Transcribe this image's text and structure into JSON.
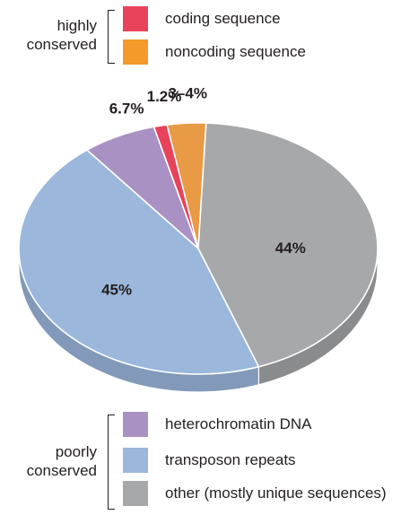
{
  "legend_groups": [
    {
      "label_lines": [
        "highly",
        "conserved"
      ],
      "items": [
        {
          "label": "coding sequence",
          "color": "#e8435a"
        },
        {
          "label": "noncoding sequence",
          "color": "#f39a2b"
        }
      ]
    },
    {
      "label_lines": [
        "poorly",
        "conserved"
      ],
      "items": [
        {
          "label": "heterochromatin DNA",
          "color": "#a991c3"
        },
        {
          "label": "transposon repeats",
          "color": "#9bb7dc"
        },
        {
          "label": "other (mostly unique sequences)",
          "color": "#a7a8aa"
        }
      ]
    }
  ],
  "chart_data": {
    "type": "pie",
    "style": "3d",
    "slices": [
      {
        "category": "heterochromatin DNA",
        "label": "6.7%",
        "value": 6.7,
        "color": "#a991c3",
        "side_color": "#8f7aa8"
      },
      {
        "category": "coding sequence",
        "label": "1.2%",
        "value": 1.2,
        "color": "#e8435a",
        "side_color": "#c23448"
      },
      {
        "category": "noncoding sequence",
        "label": "3–4%",
        "value": 3.5,
        "color": "#e89a45",
        "side_color": "#c27f36"
      },
      {
        "category": "other (mostly unique sequences)",
        "label": "44%",
        "value": 44,
        "color": "#a7a8aa",
        "side_color": "#8a8b8d"
      },
      {
        "category": "transposon repeats",
        "label": "45%",
        "value": 45,
        "color": "#9bb7dc",
        "side_color": "#8299b9"
      }
    ]
  }
}
